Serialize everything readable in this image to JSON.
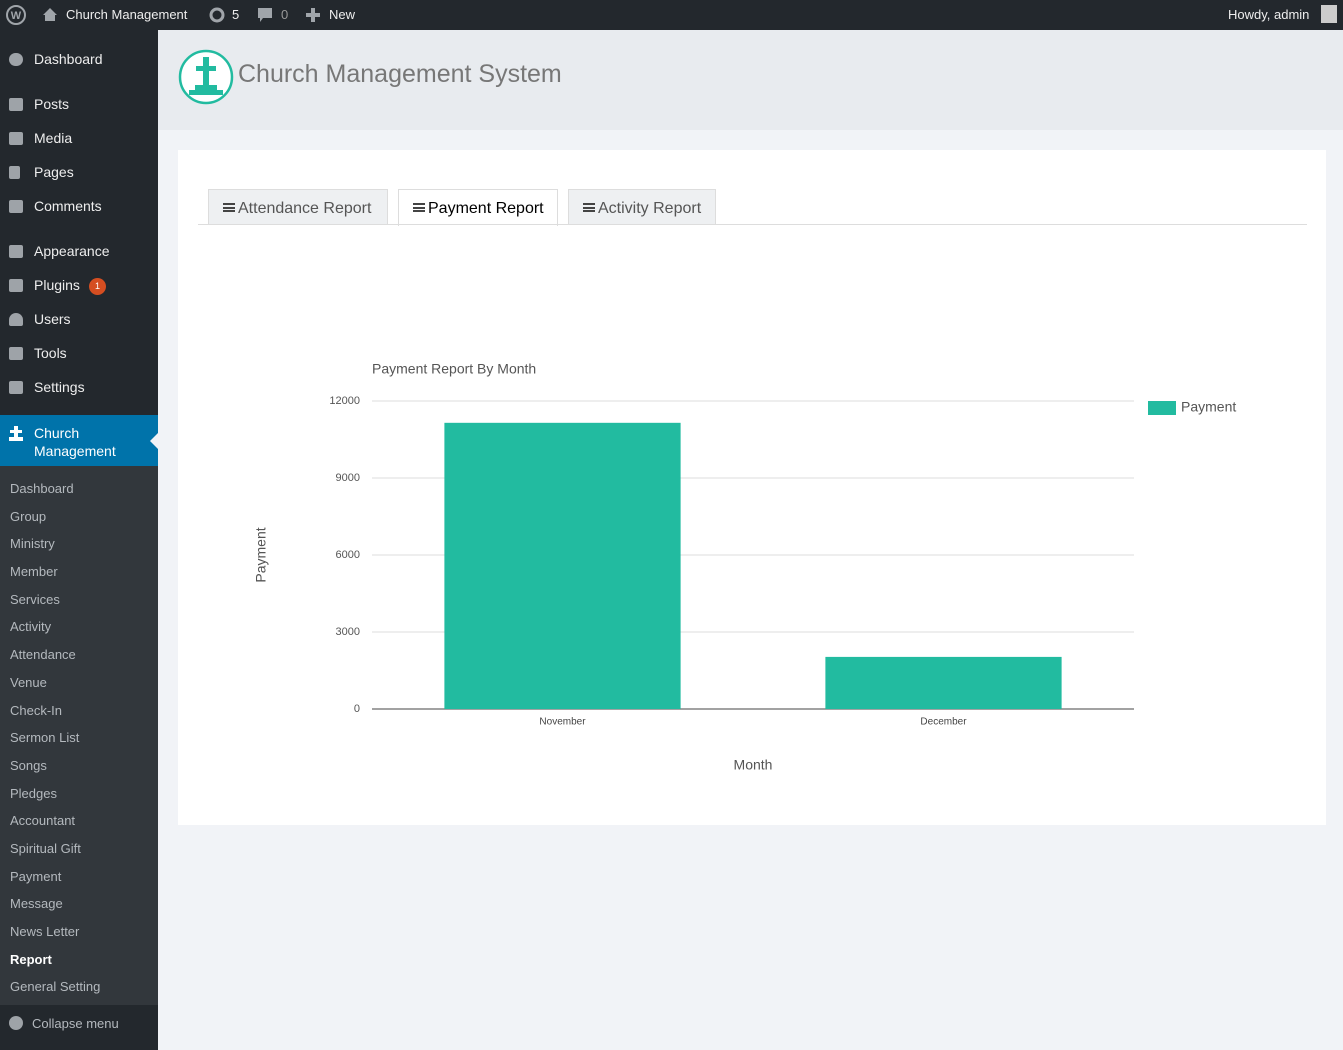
{
  "admin_bar": {
    "site": "Church Management",
    "updates": "5",
    "comments": "0",
    "new": "New",
    "greeting": "Howdy, admin"
  },
  "menu": {
    "items": [
      "Dashboard",
      "Posts",
      "Media",
      "Pages",
      "Comments",
      "Appearance",
      "Plugins",
      "Users",
      "Tools",
      "Settings"
    ],
    "plugins_badge": "1",
    "active": "Church Management",
    "submenu": [
      "Dashboard",
      "Group",
      "Ministry",
      "Member",
      "Services",
      "Activity",
      "Attendance",
      "Venue",
      "Check-In",
      "Sermon List",
      "Songs",
      "Pledges",
      "Accountant",
      "Spiritual Gift",
      "Payment",
      "Message",
      "News Letter",
      "Report",
      "General Setting"
    ],
    "collapse": "Collapse menu"
  },
  "header": {
    "title": "Church Management System"
  },
  "tabs": [
    "Attendance Report",
    "Payment Report",
    "Activity Report"
  ],
  "chart_data": {
    "type": "bar",
    "title": "Payment Report By Month",
    "x_label": "Month",
    "y_label": "Payment",
    "categories": [
      "November",
      "December"
    ],
    "series": [
      {
        "name": "Payment",
        "color": "#22bba0",
        "values": [
          11150,
          2030
        ]
      }
    ],
    "ylim": [
      0,
      12000
    ],
    "yticks": [
      0,
      3000,
      6000,
      9000,
      12000
    ],
    "grid": true,
    "legend": "right"
  }
}
